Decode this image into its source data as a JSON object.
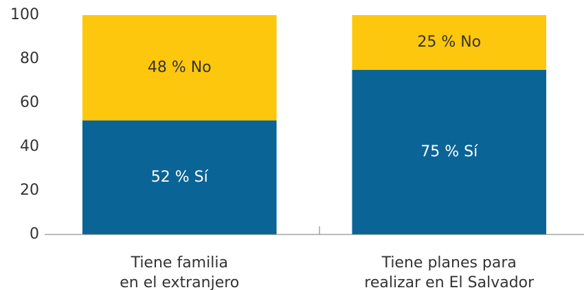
{
  "chart_data": {
    "type": "stacked_bar",
    "categories": [
      [
        "Tiene familia",
        "en el extranjero"
      ],
      [
        "Tiene planes para",
        "realizar en El Salvador"
      ]
    ],
    "series": [
      {
        "color": "#0b6496",
        "values": [
          52,
          75
        ],
        "value_labels": [
          "52 % Sí",
          "75 % Sí"
        ]
      },
      {
        "color": "#fdc70d",
        "values": [
          48,
          25
        ],
        "value_labels": [
          "48 % No",
          "25 % No"
        ]
      }
    ],
    "ylim": [
      0,
      100
    ],
    "yticks": [
      0,
      20,
      40,
      60,
      80,
      100
    ],
    "grid": false
  }
}
